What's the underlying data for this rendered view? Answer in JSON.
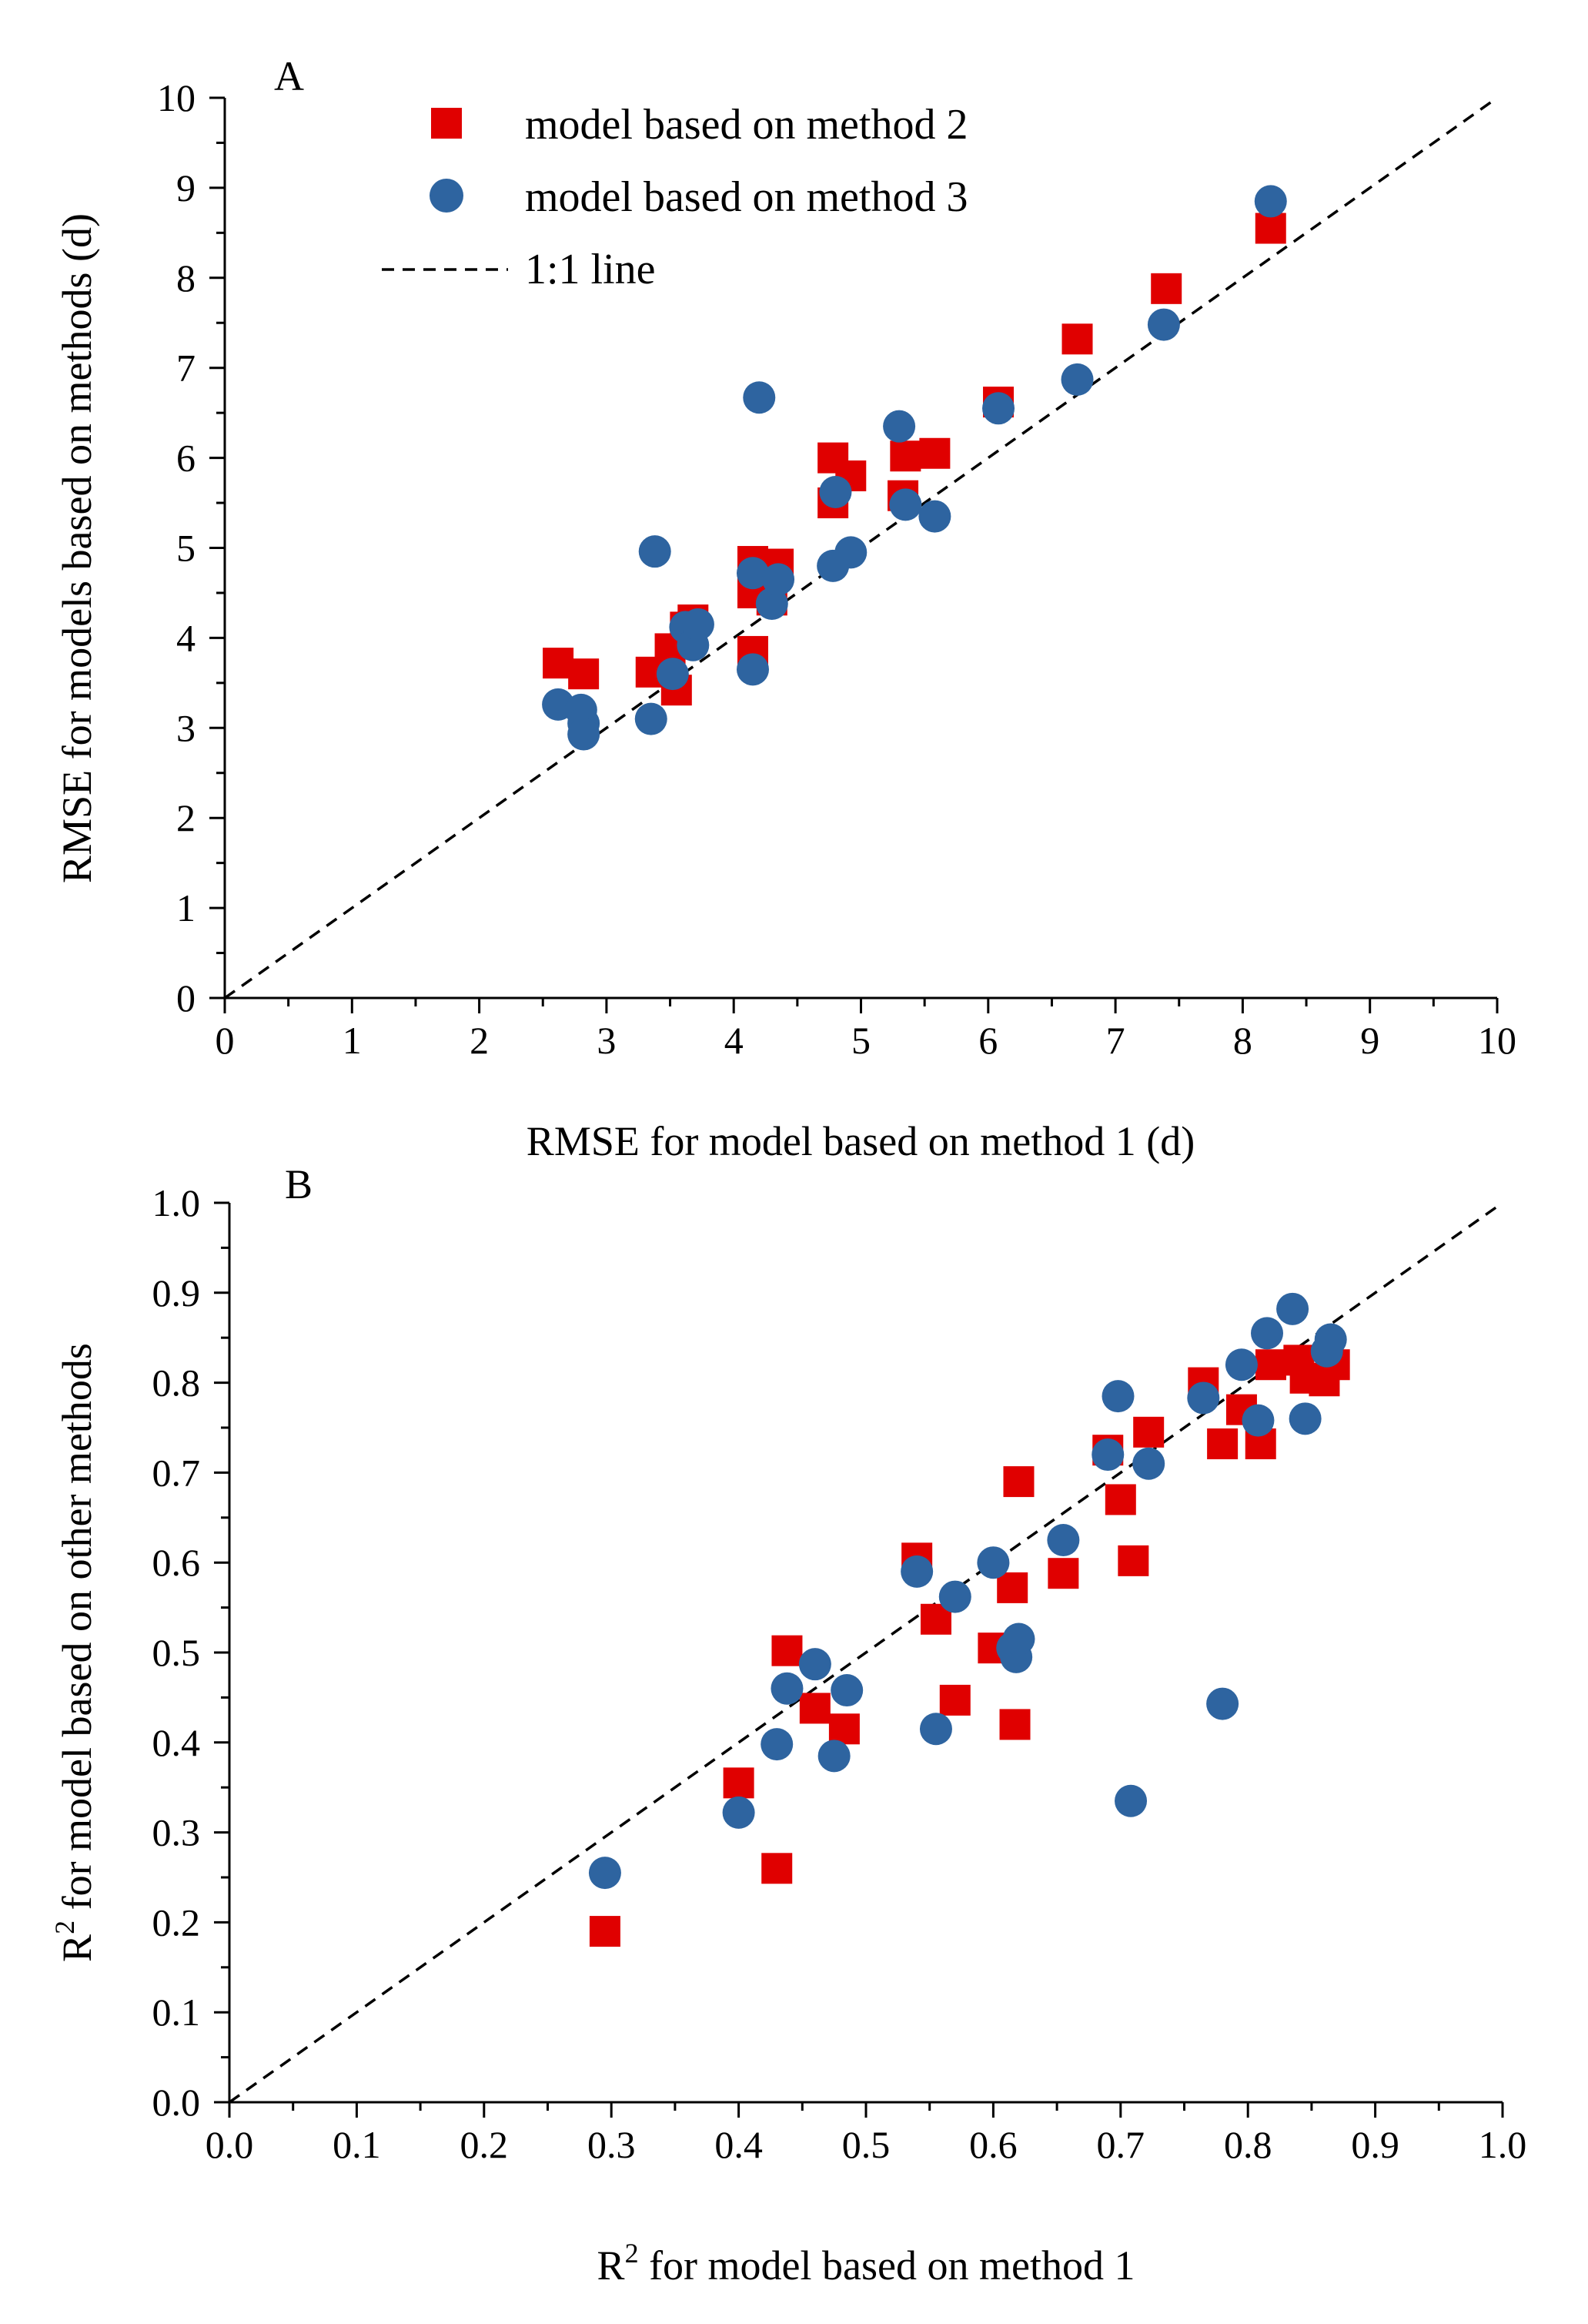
{
  "chart_data": [
    {
      "panel_label": "A",
      "type": "scatter",
      "xlabel": "RMSE for model based on method 1 (d)",
      "ylabel": "RMSE for models based on methods (d)",
      "xlim": [
        0,
        10
      ],
      "ylim": [
        0,
        10
      ],
      "xticks": [
        "0",
        "1",
        "2",
        "3",
        "4",
        "5",
        "6",
        "7",
        "8",
        "9",
        "10"
      ],
      "yticks": [
        "0",
        "1",
        "2",
        "3",
        "4",
        "5",
        "6",
        "7",
        "8",
        "9",
        "10"
      ],
      "minor_ticks": true,
      "grid": false,
      "legend": {
        "position": "top-left",
        "entries": [
          {
            "label": "model based on method 2",
            "marker": "square",
            "color": "#e00000"
          },
          {
            "label": "model based on method 3",
            "marker": "circle",
            "color": "#2e64a0"
          },
          {
            "label": "1:1 line",
            "marker": "dashed-line",
            "color": "#000000"
          }
        ]
      },
      "reference_line": {
        "name": "1:1 line",
        "from": [
          0,
          0
        ],
        "to": [
          10,
          10
        ]
      },
      "series": [
        {
          "name": "model based on method 2",
          "marker": "square",
          "color": "#e00000",
          "points": [
            [
              2.62,
              3.72
            ],
            [
              2.82,
              3.6
            ],
            [
              3.35,
              3.62
            ],
            [
              3.5,
              3.88
            ],
            [
              3.55,
              3.42
            ],
            [
              3.62,
              4.12
            ],
            [
              3.68,
              4.2
            ],
            [
              4.15,
              3.85
            ],
            [
              4.15,
              4.5
            ],
            [
              4.15,
              4.85
            ],
            [
              4.3,
              4.42
            ],
            [
              4.35,
              4.82
            ],
            [
              4.78,
              5.5
            ],
            [
              4.78,
              6.0
            ],
            [
              4.92,
              5.8
            ],
            [
              5.33,
              5.58
            ],
            [
              5.35,
              6.02
            ],
            [
              5.58,
              6.05
            ],
            [
              6.08,
              6.62
            ],
            [
              6.7,
              7.32
            ],
            [
              7.4,
              7.88
            ],
            [
              8.22,
              8.55
            ]
          ]
        },
        {
          "name": "model based on method 3",
          "marker": "circle",
          "color": "#2e64a0",
          "points": [
            [
              2.62,
              3.26
            ],
            [
              2.8,
              3.2
            ],
            [
              2.82,
              3.05
            ],
            [
              2.82,
              2.93
            ],
            [
              3.35,
              3.1
            ],
            [
              3.38,
              4.96
            ],
            [
              3.52,
              3.6
            ],
            [
              3.62,
              4.12
            ],
            [
              3.68,
              3.92
            ],
            [
              3.72,
              4.15
            ],
            [
              4.15,
              3.65
            ],
            [
              4.15,
              4.72
            ],
            [
              4.2,
              6.67
            ],
            [
              4.3,
              4.38
            ],
            [
              4.35,
              4.65
            ],
            [
              4.78,
              4.8
            ],
            [
              4.8,
              5.62
            ],
            [
              4.92,
              4.95
            ],
            [
              5.3,
              6.35
            ],
            [
              5.35,
              5.48
            ],
            [
              5.58,
              5.35
            ],
            [
              6.08,
              6.55
            ],
            [
              6.7,
              6.87
            ],
            [
              7.38,
              7.48
            ],
            [
              8.22,
              8.85
            ]
          ]
        }
      ]
    },
    {
      "panel_label": "B",
      "type": "scatter",
      "xlabel_prefix": "R",
      "xlabel_sup": "2",
      "xlabel_suffix": " for model based on method 1",
      "ylabel_prefix": "R",
      "ylabel_sup": "2",
      "ylabel_suffix": " for model based on other methods",
      "xlim": [
        0,
        1
      ],
      "ylim": [
        0,
        1
      ],
      "xticks": [
        "0.0",
        "0.1",
        "0.2",
        "0.3",
        "0.4",
        "0.5",
        "0.6",
        "0.7",
        "0.8",
        "0.9",
        "1.0"
      ],
      "yticks": [
        "0.0",
        "0.1",
        "0.2",
        "0.3",
        "0.4",
        "0.5",
        "0.6",
        "0.7",
        "0.8",
        "0.9",
        "1.0"
      ],
      "minor_ticks": true,
      "grid": false,
      "reference_line": {
        "name": "1:1 line",
        "from": [
          0,
          0
        ],
        "to": [
          1,
          1
        ]
      },
      "series": [
        {
          "name": "model based on method 2",
          "marker": "square",
          "color": "#e00000",
          "points": [
            [
              0.295,
              0.19
            ],
            [
              0.4,
              0.355
            ],
            [
              0.43,
              0.26
            ],
            [
              0.438,
              0.502
            ],
            [
              0.46,
              0.438
            ],
            [
              0.483,
              0.415
            ],
            [
              0.54,
              0.605
            ],
            [
              0.555,
              0.537
            ],
            [
              0.57,
              0.447
            ],
            [
              0.6,
              0.505
            ],
            [
              0.615,
              0.572
            ],
            [
              0.617,
              0.42
            ],
            [
              0.62,
              0.69
            ],
            [
              0.655,
              0.588
            ],
            [
              0.69,
              0.725
            ],
            [
              0.7,
              0.67
            ],
            [
              0.71,
              0.602
            ],
            [
              0.722,
              0.745
            ],
            [
              0.765,
              0.8
            ],
            [
              0.78,
              0.732
            ],
            [
              0.795,
              0.77
            ],
            [
              0.81,
              0.732
            ],
            [
              0.818,
              0.82
            ],
            [
              0.84,
              0.825
            ],
            [
              0.845,
              0.805
            ],
            [
              0.86,
              0.802
            ],
            [
              0.868,
              0.82
            ]
          ]
        },
        {
          "name": "model based on method 3",
          "marker": "circle",
          "color": "#2e64a0",
          "points": [
            [
              0.295,
              0.255
            ],
            [
              0.4,
              0.322
            ],
            [
              0.43,
              0.398
            ],
            [
              0.438,
              0.46
            ],
            [
              0.46,
              0.487
            ],
            [
              0.475,
              0.385
            ],
            [
              0.485,
              0.458
            ],
            [
              0.54,
              0.59
            ],
            [
              0.555,
              0.415
            ],
            [
              0.57,
              0.562
            ],
            [
              0.6,
              0.6
            ],
            [
              0.615,
              0.505
            ],
            [
              0.618,
              0.495
            ],
            [
              0.62,
              0.515
            ],
            [
              0.655,
              0.625
            ],
            [
              0.69,
              0.72
            ],
            [
              0.698,
              0.785
            ],
            [
              0.708,
              0.335
            ],
            [
              0.722,
              0.71
            ],
            [
              0.765,
              0.783
            ],
            [
              0.78,
              0.443
            ],
            [
              0.795,
              0.82
            ],
            [
              0.808,
              0.758
            ],
            [
              0.815,
              0.855
            ],
            [
              0.835,
              0.882
            ],
            [
              0.845,
              0.76
            ],
            [
              0.862,
              0.835
            ],
            [
              0.865,
              0.848
            ]
          ]
        }
      ]
    }
  ]
}
